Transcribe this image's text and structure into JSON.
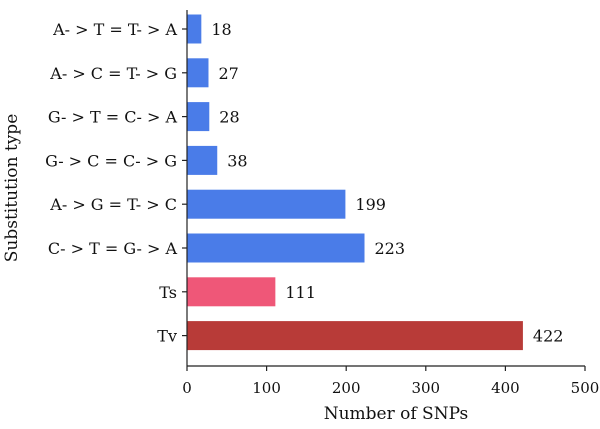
{
  "chart_data": {
    "type": "bar",
    "orientation": "horizontal",
    "categories": [
      "A- > T = T- > A",
      "A- > C = T- > G",
      "G- > T = C- > A",
      "G- > C = C- > G",
      "A- > G = T- > C",
      "C- > T = G- > A",
      "Ts",
      "Tv"
    ],
    "values": [
      18,
      27,
      28,
      38,
      199,
      223,
      111,
      422
    ],
    "bar_colors": [
      "#4a7ce8",
      "#4a7ce8",
      "#4a7ce8",
      "#4a7ce8",
      "#4a7ce8",
      "#4a7ce8",
      "#ef5778",
      "#b83b38"
    ],
    "xlabel": "Number of SNPs",
    "ylabel": "Substitution type",
    "xlim": [
      0,
      500
    ],
    "xticks": [
      0,
      100,
      200,
      300,
      400,
      500
    ],
    "grid": false,
    "legend": "none"
  }
}
